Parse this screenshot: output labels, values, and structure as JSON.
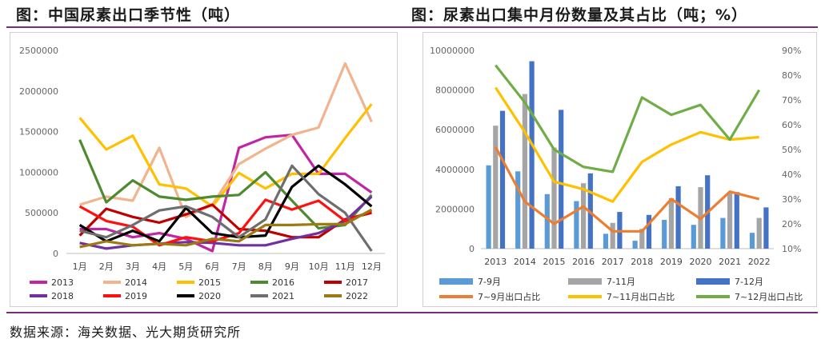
{
  "titles": {
    "left": "图：中国尿素出口季节性（吨）",
    "right": "图：尿素出口集中月份数量及其占比（吨；%）"
  },
  "source": "数据来源：海关数据、光大期货研究所",
  "chart_data": [
    {
      "type": "line",
      "title": "图：中国尿素出口季节性（吨）",
      "categories": [
        "1月",
        "2月",
        "3月",
        "4月",
        "5月",
        "6月",
        "7月",
        "8月",
        "9月",
        "10月",
        "11月",
        "12月"
      ],
      "ylim": [
        0,
        2500000
      ],
      "yticks": [
        "0",
        "500000",
        "1000000",
        "1500000",
        "2000000",
        "2500000"
      ],
      "legend_position": "bottom",
      "series": [
        {
          "name": "2013",
          "color": "#c026a3",
          "values": [
            300000,
            300000,
            200000,
            250000,
            180000,
            30000,
            1300000,
            1430000,
            1460000,
            980000,
            980000,
            750000
          ]
        },
        {
          "name": "2014",
          "color": "#f2b38f",
          "values": [
            600000,
            700000,
            650000,
            1300000,
            450000,
            600000,
            1100000,
            1290000,
            1460000,
            1550000,
            2340000,
            1620000
          ]
        },
        {
          "name": "2015",
          "color": "#ffc000",
          "values": [
            1670000,
            1280000,
            1450000,
            850000,
            800000,
            580000,
            990000,
            800000,
            980000,
            980000,
            1420000,
            1840000
          ]
        },
        {
          "name": "2016",
          "color": "#4e8a2f",
          "values": [
            1400000,
            630000,
            900000,
            700000,
            660000,
            700000,
            720000,
            1000000,
            650000,
            310000,
            350000,
            720000
          ]
        },
        {
          "name": "2017",
          "color": "#c00000",
          "values": [
            220000,
            550000,
            450000,
            380000,
            480000,
            600000,
            300000,
            280000,
            200000,
            200000,
            420000,
            500000
          ]
        },
        {
          "name": "2018",
          "color": "#7030a0",
          "values": [
            130000,
            60000,
            100000,
            120000,
            140000,
            130000,
            100000,
            100000,
            180000,
            250000,
            400000,
            700000
          ]
        },
        {
          "name": "2019",
          "color": "#ff1010",
          "values": [
            580000,
            400000,
            330000,
            100000,
            200000,
            150000,
            250000,
            660000,
            540000,
            650000,
            400000,
            520000
          ]
        },
        {
          "name": "2020",
          "color": "#000000",
          "values": [
            350000,
            150000,
            280000,
            150000,
            560000,
            250000,
            200000,
            220000,
            820000,
            1080000,
            850000,
            580000
          ]
        },
        {
          "name": "2021",
          "color": "#6e6e6e",
          "values": [
            280000,
            200000,
            350000,
            530000,
            580000,
            450000,
            200000,
            420000,
            1080000,
            730000,
            500000,
            30000
          ]
        },
        {
          "name": "2022",
          "color": "#9c7a12",
          "values": [
            80000,
            150000,
            100000,
            120000,
            100000,
            180000,
            150000,
            350000,
            350000,
            360000,
            360000,
            540000
          ]
        }
      ]
    },
    {
      "type": "bar+line",
      "title": "图：尿素出口集中月份数量及其占比（吨；%）",
      "categories": [
        "2013",
        "2014",
        "2015",
        "2016",
        "2017",
        "2018",
        "2019",
        "2020",
        "2021",
        "2022"
      ],
      "ylim_left": [
        0,
        10000000
      ],
      "ylim_right": [
        10,
        90
      ],
      "yticks_left": [
        "0",
        "2000000",
        "4000000",
        "6000000",
        "8000000",
        "10000000"
      ],
      "yticks_right": [
        "10%",
        "20%",
        "30%",
        "40%",
        "50%",
        "60%",
        "70%",
        "80%",
        "90%"
      ],
      "legend_position": "bottom",
      "bars": [
        {
          "name": "7-9月",
          "color": "#5b9bd5",
          "values": [
            4200000,
            3900000,
            2750000,
            2400000,
            750000,
            400000,
            1450000,
            1200000,
            1550000,
            800000
          ]
        },
        {
          "name": "7-11月",
          "color": "#a5a5a5",
          "values": [
            6200000,
            7800000,
            5100000,
            3300000,
            1300000,
            1000000,
            2550000,
            3100000,
            2800000,
            1550000
          ]
        },
        {
          "name": "7-12月",
          "color": "#4472c4",
          "values": [
            6950000,
            9450000,
            7000000,
            3800000,
            1850000,
            1700000,
            3150000,
            3700000,
            2850000,
            2080000
          ]
        }
      ],
      "lines": [
        {
          "name": "7~9月出口占比",
          "color": "#ed7d31",
          "values": [
            51,
            29,
            20,
            27,
            17,
            17,
            30,
            22,
            33,
            30
          ]
        },
        {
          "name": "7~11月出口占比",
          "color": "#ffc000",
          "values": [
            75,
            57,
            37,
            34,
            29,
            45,
            52,
            57,
            54,
            55
          ]
        },
        {
          "name": "7~12月出口占比",
          "color": "#70ad47",
          "values": [
            84,
            69,
            50,
            43,
            41,
            71,
            64,
            68,
            54,
            74
          ]
        }
      ],
      "legend": [
        "7-9月",
        "7-11月",
        "7-12月",
        "7~9月出口占比",
        "7~11月出口占比",
        "7~12月出口占比"
      ]
    }
  ]
}
